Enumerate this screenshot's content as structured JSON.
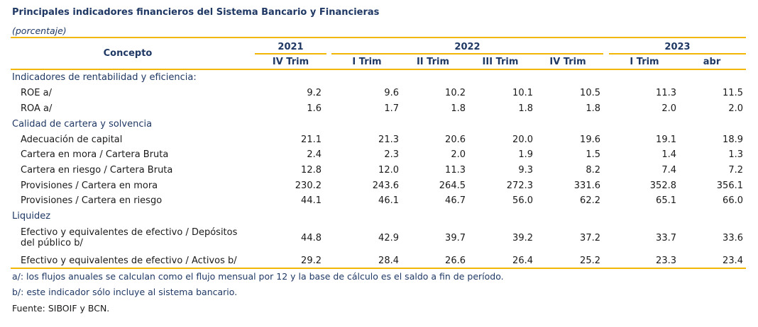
{
  "title": "Principales indicadores financieros del Sistema Bancario y Financieras",
  "subtitle": "(porcentaje)",
  "header": {
    "concept": "Concepto",
    "years": [
      "2021",
      "2022",
      "2023"
    ],
    "periods": [
      "IV Trim",
      "I Trim",
      "II Trim",
      "III Trim",
      "IV Trim",
      "I Trim",
      "abr"
    ]
  },
  "sections": [
    {
      "label": "Indicadores de rentabilidad y eficiencia:",
      "rows": [
        {
          "label": "ROE a/",
          "values": [
            "9.2",
            "9.6",
            "10.2",
            "10.1",
            "10.5",
            "11.3",
            "11.5"
          ]
        },
        {
          "label": "ROA a/",
          "values": [
            "1.6",
            "1.7",
            "1.8",
            "1.8",
            "1.8",
            "2.0",
            "2.0"
          ]
        }
      ]
    },
    {
      "label": "Calidad de cartera y solvencia",
      "rows": [
        {
          "label": "Adecuación de capital",
          "values": [
            "21.1",
            "21.3",
            "20.6",
            "20.0",
            "19.6",
            "19.1",
            "18.9"
          ]
        },
        {
          "label": "Cartera en mora / Cartera Bruta",
          "values": [
            "2.4",
            "2.3",
            "2.0",
            "1.9",
            "1.5",
            "1.4",
            "1.3"
          ]
        },
        {
          "label": "Cartera en riesgo / Cartera Bruta",
          "values": [
            "12.8",
            "12.0",
            "11.3",
            "9.3",
            "8.2",
            "7.4",
            "7.2"
          ]
        },
        {
          "label": "Provisiones / Cartera en mora",
          "values": [
            "230.2",
            "243.6",
            "264.5",
            "272.3",
            "331.6",
            "352.8",
            "356.1"
          ]
        },
        {
          "label": "Provisiones / Cartera en riesgo",
          "values": [
            "44.1",
            "46.1",
            "46.7",
            "56.0",
            "62.2",
            "65.1",
            "66.0"
          ]
        }
      ]
    },
    {
      "label": "Liquidez",
      "rows": [
        {
          "label": [
            "Efectivo y equivalentes de efectivo / Depósitos",
            "del público b/"
          ],
          "values": [
            "44.8",
            "42.9",
            "39.7",
            "39.2",
            "37.2",
            "33.7",
            "33.6"
          ]
        },
        {
          "label": "Efectivo y equivalentes de efectivo / Activos b/",
          "values": [
            "29.2",
            "28.4",
            "26.6",
            "26.4",
            "25.2",
            "23.3",
            "23.4"
          ]
        }
      ]
    }
  ],
  "notes": [
    "a/: los flujos anuales se calculan como el flujo mensual por 12 y la base de cálculo es el saldo a fin de período.",
    "b/: este indicador sólo incluye al sistema bancario.",
    "Fuente: SIBOIF y BCN."
  ],
  "colors": {
    "accent_line": "#f2b705",
    "header_text": "#1f3864"
  }
}
